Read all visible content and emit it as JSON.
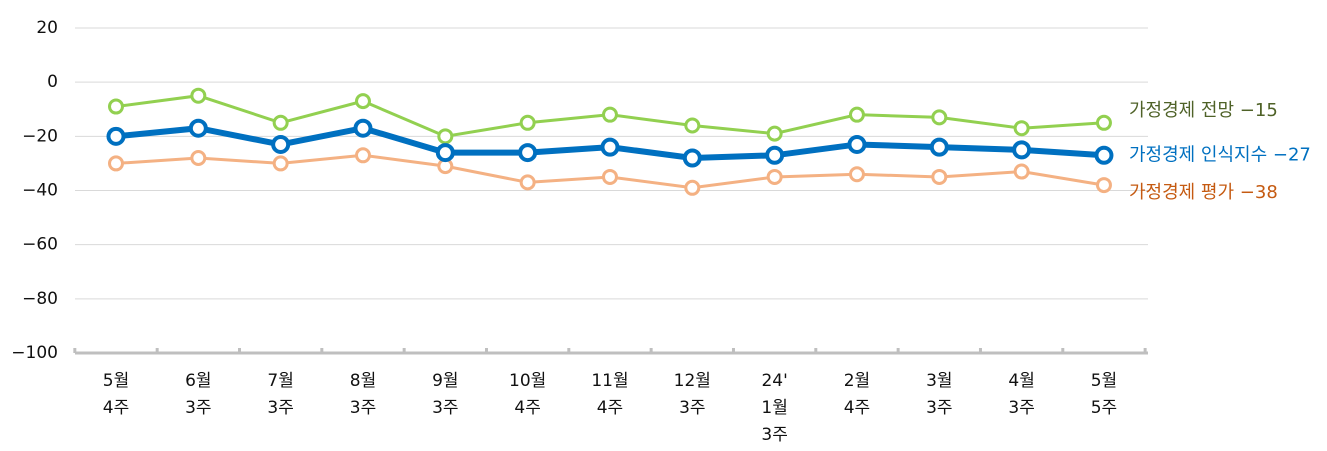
{
  "chart_data": {
    "type": "line",
    "categories": [
      [
        "5월",
        "4주"
      ],
      [
        "6월",
        "3주"
      ],
      [
        "7월",
        "3주"
      ],
      [
        "8월",
        "3주"
      ],
      [
        "9월",
        "3주"
      ],
      [
        "10월",
        "4주"
      ],
      [
        "11월",
        "4주"
      ],
      [
        "12월",
        "3주"
      ],
      [
        "24'",
        "1월",
        "3주"
      ],
      [
        "2월",
        "4주"
      ],
      [
        "3월",
        "3주"
      ],
      [
        "4월",
        "3주"
      ],
      [
        "5월",
        "5주"
      ]
    ],
    "series": [
      {
        "name": "가정경제 전망",
        "color": "#92d050",
        "label_color": "#4f6228",
        "values": [
          -9,
          -5,
          -15,
          -7,
          -20,
          -15,
          -12,
          -16,
          -19,
          -12,
          -13,
          -17,
          -15
        ],
        "value_labels": [
          null,
          null,
          null,
          null,
          null,
          null,
          null,
          null,
          null,
          null,
          null,
          null,
          "−15"
        ]
      },
      {
        "name": "가정경제 인식지수",
        "color": "#0070c0",
        "label_color": "#0070c0",
        "values": [
          -20,
          -17,
          -23,
          -17,
          -26,
          -26,
          -24,
          -28,
          -27,
          -23,
          -24,
          -25,
          -27
        ],
        "value_labels": [
          null,
          null,
          null,
          null,
          null,
          null,
          null,
          null,
          null,
          null,
          null,
          null,
          "−27"
        ]
      },
      {
        "name": "가정경제 평가",
        "color": "#f4b183",
        "label_color": "#c55a11",
        "values": [
          -30,
          -28,
          -30,
          -27,
          -31,
          -37,
          -35,
          -39,
          -35,
          -34,
          -35,
          -33,
          -38
        ],
        "value_labels": [
          null,
          null,
          null,
          null,
          null,
          null,
          null,
          null,
          null,
          null,
          null,
          null,
          "−38"
        ]
      }
    ],
    "ylim": [
      -100,
      20
    ],
    "yticks": [
      {
        "value": -100,
        "label": "−100"
      },
      {
        "value": -80,
        "label": "−80"
      },
      {
        "value": -60,
        "label": "−60"
      },
      {
        "value": -40,
        "label": "−40"
      },
      {
        "value": -20,
        "label": "−20"
      },
      0,
      20
    ],
    "grid": true
  }
}
